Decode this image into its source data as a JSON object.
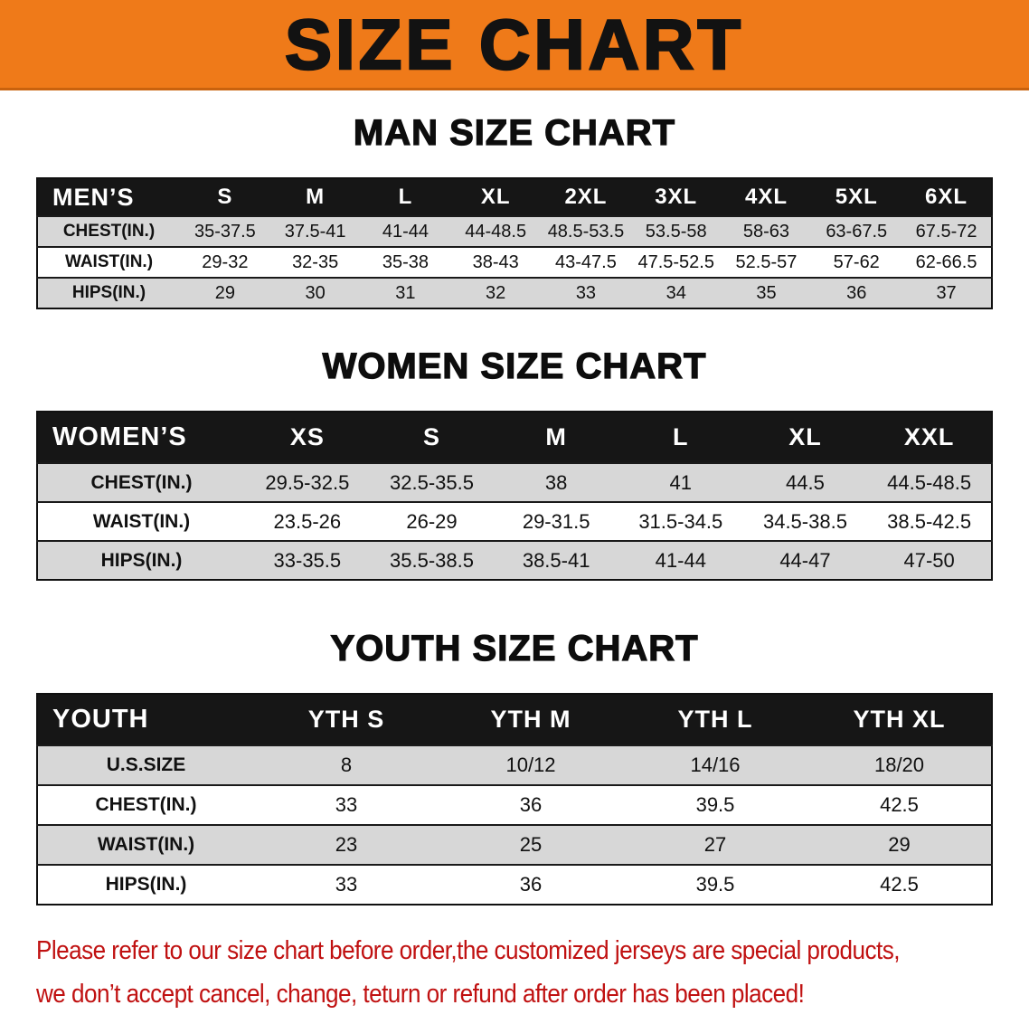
{
  "banner": {
    "title": "SIZE CHART"
  },
  "sections": [
    {
      "title": "MAN SIZE CHART",
      "table": {
        "header": [
          "MEN’S",
          "S",
          "M",
          "L",
          "XL",
          "2XL",
          "3XL",
          "4XL",
          "5XL",
          "6XL"
        ],
        "rows": [
          {
            "label": "CHEST(IN.)",
            "values": [
              "35-37.5",
              "37.5-41",
              "41-44",
              "44-48.5",
              "48.5-53.5",
              "53.5-58",
              "58-63",
              "63-67.5",
              "67.5-72"
            ]
          },
          {
            "label": "WAIST(IN.)",
            "values": [
              "29-32",
              "32-35",
              "35-38",
              "38-43",
              "43-47.5",
              "47.5-52.5",
              "52.5-57",
              "57-62",
              "62-66.5"
            ]
          },
          {
            "label": "HIPS(IN.)",
            "values": [
              "29",
              "30",
              "31",
              "32",
              "33",
              "34",
              "35",
              "36",
              "37"
            ]
          }
        ]
      }
    },
    {
      "title": "WOMEN SIZE CHART",
      "table": {
        "header": [
          "WOMEN’S",
          "XS",
          "S",
          "M",
          "L",
          "XL",
          "XXL"
        ],
        "rows": [
          {
            "label": "CHEST(IN.)",
            "values": [
              "29.5-32.5",
              "32.5-35.5",
              "38",
              "41",
              "44.5",
              "44.5-48.5"
            ]
          },
          {
            "label": "WAIST(IN.)",
            "values": [
              "23.5-26",
              "26-29",
              "29-31.5",
              "31.5-34.5",
              "34.5-38.5",
              "38.5-42.5"
            ]
          },
          {
            "label": "HIPS(IN.)",
            "values": [
              "33-35.5",
              "35.5-38.5",
              "38.5-41",
              "41-44",
              "44-47",
              "47-50"
            ]
          }
        ]
      }
    },
    {
      "title": "YOUTH SIZE CHART",
      "table": {
        "header": [
          "YOUTH",
          "YTH S",
          "YTH M",
          "YTH L",
          "YTH XL"
        ],
        "rows": [
          {
            "label": "U.S.SIZE",
            "values": [
              "8",
              "10/12",
              "14/16",
              "18/20"
            ]
          },
          {
            "label": "CHEST(IN.)",
            "values": [
              "33",
              "36",
              "39.5",
              "42.5"
            ]
          },
          {
            "label": "WAIST(IN.)",
            "values": [
              "23",
              "25",
              "27",
              "29"
            ]
          },
          {
            "label": "HIPS(IN.)",
            "values": [
              "33",
              "36",
              "39.5",
              "42.5"
            ]
          }
        ]
      }
    }
  ],
  "footer": {
    "line1": "Please refer to our size chart before order,the customized jerseys are special products,",
    "line2": "we don’t accept cancel, change, teturn or refund after order has been placed!"
  },
  "colors": {
    "banner_background": "#ef7a19",
    "header_row_background": "#161616",
    "header_row_text": "#ffffff",
    "alt_row_background": "#d7d7d7",
    "footer_text": "#c01111"
  }
}
